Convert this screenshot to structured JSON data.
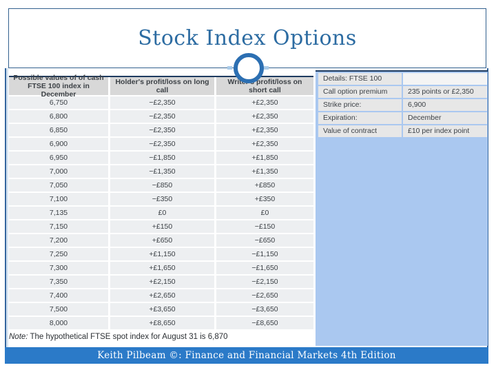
{
  "title": "Stock Index Options",
  "options_table": {
    "headers": [
      "Possible values of of cash FTSE 100 index in December",
      "Holder's profit/loss on long call",
      "Writer's profit/loss on short call"
    ],
    "rows": [
      [
        "6,750",
        "−£2,350",
        "+£2,350"
      ],
      [
        "6,800",
        "−£2,350",
        "+£2,350"
      ],
      [
        "6,850",
        "−£2,350",
        "+£2,350"
      ],
      [
        "6,900",
        "−£2,350",
        "+£2,350"
      ],
      [
        "6,950",
        "−£1,850",
        "+£1,850"
      ],
      [
        "7,000",
        "−£1,350",
        "+£1,350"
      ],
      [
        "7,050",
        "−£850",
        "+£850"
      ],
      [
        "7,100",
        "−£350",
        "+£350"
      ],
      [
        "7,135",
        "£0",
        "£0"
      ],
      [
        "7,150",
        "+£150",
        "−£150"
      ],
      [
        "7,200",
        "+£650",
        "−£650"
      ],
      [
        "7,250",
        "+£1,150",
        "−£1,150"
      ],
      [
        "7,300",
        "+£1,650",
        "−£1,650"
      ],
      [
        "7,350",
        "+£2,150",
        "−£2,150"
      ],
      [
        "7,400",
        "+£2,650",
        "−£2,650"
      ],
      [
        "7,500",
        "+£3,650",
        "−£3,650"
      ],
      [
        "8,000",
        "+£8,650",
        "−£8,650"
      ]
    ],
    "note_label": "Note:",
    "note_text": " The hypothetical FTSE spot index for August 31 is 6,870"
  },
  "details_panel": {
    "rows": [
      {
        "label": "Details: FTSE 100",
        "value": ""
      },
      {
        "label": "Call option premium",
        "value": "235 points or £2,350"
      },
      {
        "label": "Strike price:",
        "value": "6,900"
      },
      {
        "label": "Expiration:",
        "value": "December"
      },
      {
        "label": "Value of contract",
        "value": "£10 per index point"
      }
    ]
  },
  "footer": {
    "text": "Keith Pilbeam ©: Finance and Financial Markets 4th Edition"
  },
  "colors": {
    "title_text": "#2d6ca2",
    "box_border": "#33608e",
    "circle_ring": "#2c6fb2",
    "table_top_border": "#1d3a5f",
    "header_cell_bg": "#d8d8d8",
    "row_cell_bg": "#edeff1",
    "details_cell_bg": "#e7e7e7",
    "panel_bg": "#aac8f0",
    "footer_bar_bg": "#2b7ac8",
    "body_text": "#3c4146"
  }
}
